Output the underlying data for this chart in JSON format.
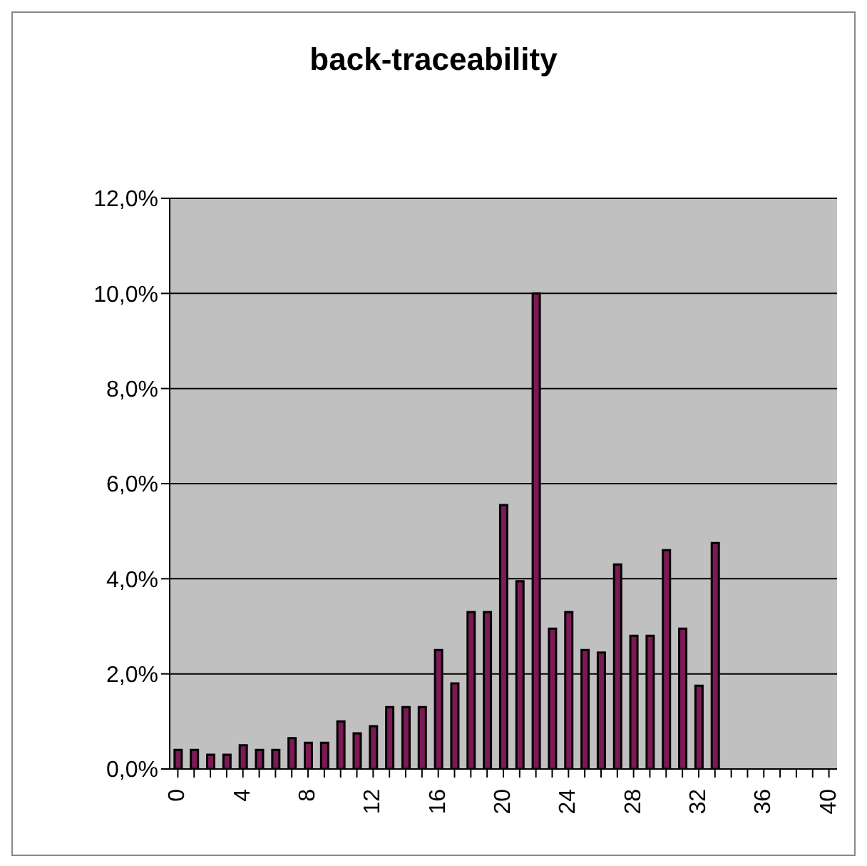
{
  "chart_data": {
    "type": "bar",
    "title": "back-traceability",
    "categories": [
      "0",
      null,
      null,
      null,
      "4",
      null,
      null,
      null,
      "8",
      null,
      null,
      null,
      "12",
      null,
      null,
      null,
      "16",
      null,
      null,
      null,
      "20",
      null,
      null,
      null,
      "24",
      null,
      null,
      null,
      "28",
      null,
      null,
      null,
      "32",
      null,
      null,
      null,
      "36",
      null,
      null,
      null,
      "40"
    ],
    "values": [
      0.4,
      0.4,
      0.3,
      0.3,
      0.5,
      0.4,
      0.4,
      0.65,
      0.55,
      0.55,
      1.0,
      0.75,
      0.9,
      1.3,
      1.3,
      1.3,
      2.5,
      1.8,
      3.3,
      3.3,
      5.55,
      3.95,
      10.0,
      2.95,
      3.3,
      2.5,
      2.45,
      4.3,
      2.8,
      2.8,
      4.6,
      2.95,
      1.75,
      4.75,
      0,
      0,
      0,
      0,
      0,
      0,
      0
    ],
    "color": "#7b1a55",
    "ylim": [
      0,
      12
    ],
    "yticks": [
      {
        "value": 0,
        "label": "0,0%"
      },
      {
        "value": 2,
        "label": "2,0%"
      },
      {
        "value": 4,
        "label": "4,0%"
      },
      {
        "value": 6,
        "label": "6,0%"
      },
      {
        "value": 8,
        "label": "8,0%"
      },
      {
        "value": 10,
        "label": "10,0%"
      },
      {
        "value": 12,
        "label": "12,0%"
      }
    ],
    "grid": "y",
    "legend": false
  }
}
